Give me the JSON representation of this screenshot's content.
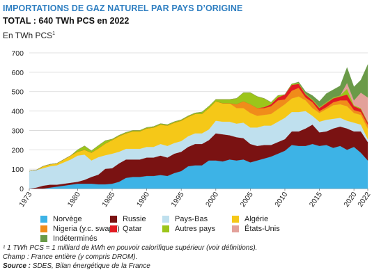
{
  "header": {
    "title": "IMPORTATIONS DE GAZ NATUREL PAR PAYS D’ORIGINE",
    "subtitle": "TOTAL : 640 TWh PCS en 2022",
    "unit_label": "En TWh PCS",
    "unit_footnote_mark": "1"
  },
  "notes": {
    "footnote": "¹ 1 TWh PCS = 1 milliard de kWh en pouvoir calorifique supérieur (voir définitions).",
    "scope": "Champ : France entière (y compris DROM).",
    "source_label": "Source :",
    "source_text": " SDES, Bilan énergétique de la France"
  },
  "chart_data": {
    "type": "area",
    "stacked": true,
    "title": "IMPORTATIONS DE GAZ NATUREL PAR PAYS D’ORIGINE",
    "subtitle": "TOTAL : 640 TWh PCS en 2022",
    "ylabel": "En TWh PCS",
    "ylim": [
      0,
      700
    ],
    "yticks": [
      0,
      100,
      200,
      300,
      400,
      500,
      600,
      700
    ],
    "xlim": [
      1973,
      2022
    ],
    "xticks": [
      1973,
      1980,
      1985,
      1990,
      1995,
      2000,
      2005,
      2010,
      2015,
      2020,
      2022
    ],
    "grid": true,
    "legend_position": "bottom",
    "x": [
      1973,
      1974,
      1975,
      1976,
      1977,
      1978,
      1979,
      1980,
      1981,
      1982,
      1983,
      1984,
      1985,
      1986,
      1987,
      1988,
      1989,
      1990,
      1991,
      1992,
      1993,
      1994,
      1995,
      1996,
      1997,
      1998,
      1999,
      2000,
      2001,
      2002,
      2003,
      2004,
      2005,
      2006,
      2007,
      2008,
      2009,
      2010,
      2011,
      2012,
      2013,
      2014,
      2015,
      2016,
      2017,
      2018,
      2019,
      2020,
      2021,
      2022
    ],
    "series": [
      {
        "name": "Norvège",
        "color": "#3db3e6",
        "values": [
          0,
          0,
          0,
          5,
          10,
          15,
          20,
          25,
          25,
          25,
          22,
          22,
          25,
          35,
          55,
          60,
          60,
          65,
          65,
          70,
          65,
          80,
          90,
          115,
          120,
          120,
          145,
          145,
          140,
          150,
          145,
          150,
          135,
          145,
          155,
          165,
          180,
          195,
          225,
          220,
          220,
          230,
          220,
          225,
          210,
          220,
          200,
          215,
          185,
          145
        ]
      },
      {
        "name": "Russie",
        "color": "#7a1212",
        "values": [
          0,
          5,
          15,
          15,
          10,
          10,
          10,
          10,
          20,
          35,
          50,
          80,
          80,
          95,
          95,
          90,
          90,
          95,
          95,
          100,
          95,
          100,
          100,
          100,
          110,
          110,
          105,
          140,
          140,
          125,
          120,
          110,
          95,
          75,
          70,
          60,
          60,
          60,
          70,
          75,
          90,
          100,
          70,
          70,
          100,
          100,
          110,
          80,
          110,
          95
        ]
      },
      {
        "name": "Pays-Bas",
        "color": "#bfe0ee",
        "values": [
          90,
          90,
          90,
          95,
          100,
          110,
          120,
          135,
          130,
          85,
          90,
          70,
          75,
          60,
          55,
          55,
          55,
          55,
          55,
          60,
          60,
          55,
          55,
          55,
          55,
          55,
          55,
          65,
          65,
          70,
          70,
          80,
          85,
          95,
          100,
          100,
          105,
          110,
          100,
          100,
          90,
          45,
          55,
          60,
          50,
          45,
          40,
          45,
          35,
          15
        ]
      },
      {
        "name": "Algérie",
        "color": "#f5c818",
        "values": [
          0,
          0,
          10,
          10,
          10,
          15,
          20,
          20,
          25,
          40,
          45,
          60,
          70,
          80,
          80,
          90,
          90,
          95,
          100,
          100,
          105,
          105,
          105,
          100,
          100,
          100,
          110,
          100,
          95,
          95,
          80,
          75,
          75,
          60,
          55,
          60,
          65,
          70,
          70,
          80,
          55,
          40,
          45,
          55,
          70,
          70,
          75,
          50,
          50,
          55
        ]
      },
      {
        "name": "Nigeria (y.c. swaps)",
        "color": "#f08c1a",
        "values": [
          0,
          0,
          0,
          0,
          0,
          0,
          0,
          0,
          0,
          0,
          0,
          0,
          0,
          0,
          0,
          0,
          0,
          0,
          0,
          0,
          0,
          0,
          0,
          0,
          0,
          0,
          0,
          0,
          0,
          0,
          20,
          35,
          45,
          40,
          35,
          40,
          45,
          25,
          40,
          45,
          15,
          30,
          10,
          10,
          15,
          20,
          30,
          15,
          15,
          20
        ]
      },
      {
        "name": "Qatar",
        "color": "#e11b22",
        "values": [
          0,
          0,
          0,
          0,
          0,
          0,
          0,
          0,
          0,
          0,
          0,
          0,
          0,
          0,
          0,
          0,
          0,
          0,
          0,
          0,
          0,
          0,
          0,
          0,
          0,
          0,
          0,
          0,
          0,
          0,
          0,
          0,
          0,
          0,
          5,
          10,
          15,
          25,
          30,
          20,
          15,
          10,
          15,
          20,
          20,
          20,
          30,
          20,
          15,
          10
        ]
      },
      {
        "name": "Autres pays",
        "color": "#9cc51a",
        "values": [
          0,
          0,
          0,
          0,
          0,
          0,
          0,
          10,
          20,
          10,
          15,
          15,
          5,
          5,
          5,
          5,
          5,
          5,
          5,
          5,
          5,
          5,
          5,
          5,
          5,
          10,
          10,
          10,
          20,
          20,
          30,
          45,
          60,
          60,
          45,
          10,
          10,
          0,
          5,
          5,
          5,
          5,
          5,
          5,
          5,
          5,
          30,
          5,
          5,
          5
        ]
      },
      {
        "name": "États-Unis",
        "color": "#e3a19a",
        "values": [
          0,
          0,
          0,
          0,
          0,
          0,
          0,
          0,
          0,
          0,
          0,
          0,
          0,
          0,
          0,
          0,
          0,
          0,
          0,
          0,
          0,
          0,
          0,
          0,
          0,
          0,
          0,
          0,
          0,
          0,
          0,
          0,
          0,
          0,
          0,
          0,
          0,
          0,
          0,
          0,
          0,
          0,
          0,
          0,
          0,
          0,
          30,
          25,
          80,
          125
        ]
      },
      {
        "name": "Indéterminés",
        "color": "#6a9a48",
        "values": [
          0,
          0,
          0,
          0,
          0,
          0,
          0,
          0,
          0,
          0,
          0,
          0,
          0,
          0,
          0,
          0,
          0,
          0,
          0,
          0,
          0,
          0,
          0,
          0,
          0,
          0,
          0,
          0,
          0,
          0,
          0,
          0,
          0,
          0,
          0,
          0,
          0,
          0,
          0,
          5,
          10,
          20,
          30,
          45,
          40,
          50,
          80,
          70,
          65,
          170
        ]
      }
    ]
  }
}
